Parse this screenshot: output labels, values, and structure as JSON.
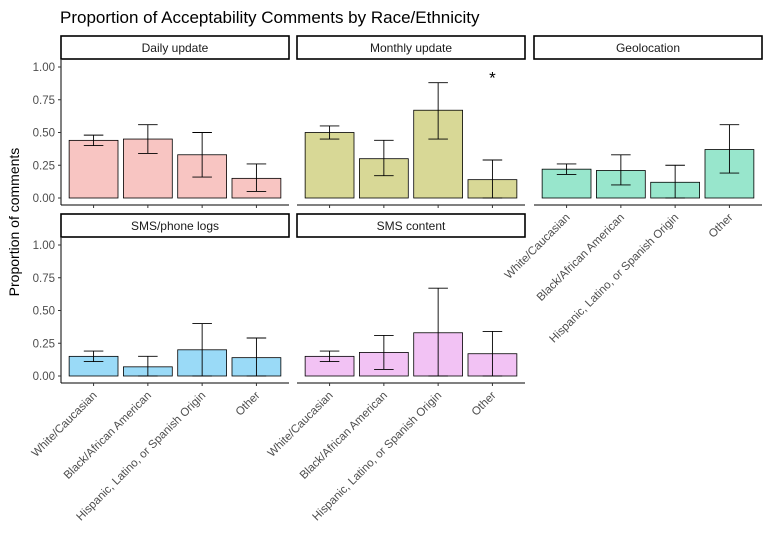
{
  "chart_data": {
    "type": "bar",
    "title": "Proportion of Acceptability Comments by Race/Ethnicity",
    "ylabel": "Proportion of comments",
    "xlabel": "",
    "ylim": [
      0,
      1
    ],
    "yticks": [
      "0.00",
      "0.25",
      "0.50",
      "0.75",
      "1.00"
    ],
    "categories": [
      "White/Caucasian",
      "Black/African American",
      "Hispanic, Latino, or Spanish Origin",
      "Other"
    ],
    "grid": false,
    "facets": [
      {
        "name": "Daily update",
        "color": "#F8C5C2",
        "values": [
          0.44,
          0.45,
          0.33,
          0.15
        ],
        "err_low": [
          0.4,
          0.34,
          0.16,
          0.05
        ],
        "err_high": [
          0.48,
          0.56,
          0.5,
          0.26
        ],
        "annotation": ""
      },
      {
        "name": "Monthly update",
        "color": "#D8D896",
        "values": [
          0.5,
          0.3,
          0.67,
          0.14
        ],
        "err_low": [
          0.45,
          0.17,
          0.45,
          0.0
        ],
        "err_high": [
          0.55,
          0.44,
          0.88,
          0.29
        ],
        "annotation": "*"
      },
      {
        "name": "Geolocation",
        "color": "#98E6CC",
        "values": [
          0.22,
          0.21,
          0.12,
          0.37
        ],
        "err_low": [
          0.18,
          0.1,
          0.0,
          0.19
        ],
        "err_high": [
          0.26,
          0.33,
          0.25,
          0.56
        ],
        "annotation": ""
      },
      {
        "name": "SMS/phone logs",
        "color": "#9ADAF7",
        "values": [
          0.15,
          0.07,
          0.2,
          0.14
        ],
        "err_low": [
          0.11,
          0.0,
          0.0,
          0.0
        ],
        "err_high": [
          0.19,
          0.15,
          0.4,
          0.29
        ],
        "annotation": ""
      },
      {
        "name": "SMS content",
        "color": "#F2C2F4",
        "values": [
          0.15,
          0.18,
          0.33,
          0.17
        ],
        "err_low": [
          0.11,
          0.05,
          0.0,
          0.0
        ],
        "err_high": [
          0.19,
          0.31,
          0.67,
          0.34
        ],
        "annotation": ""
      }
    ]
  }
}
